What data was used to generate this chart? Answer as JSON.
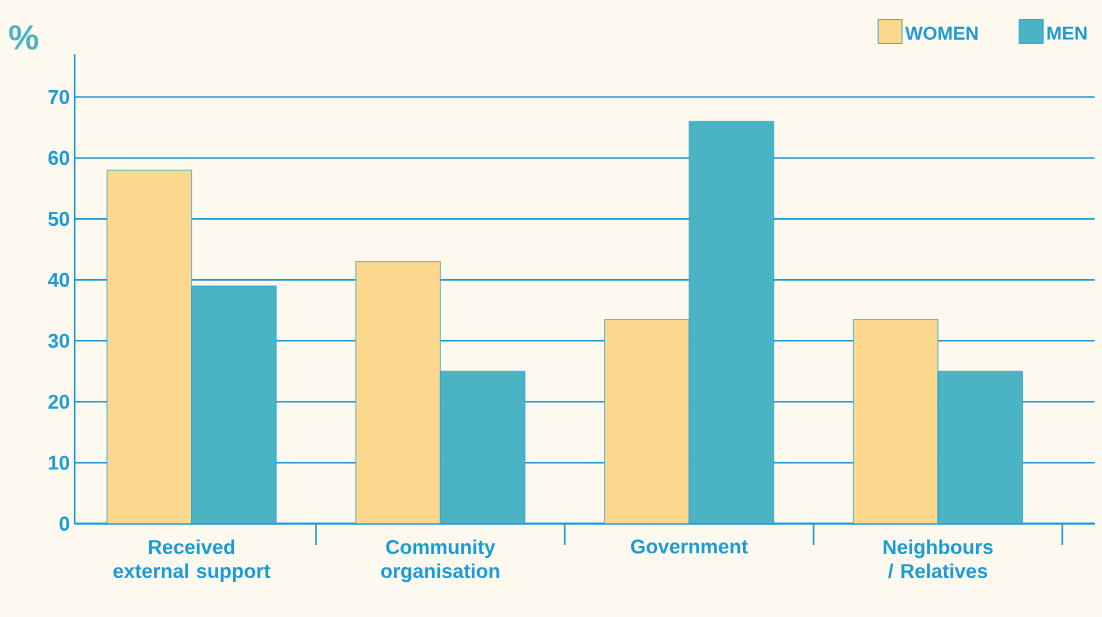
{
  "chart_data": {
    "type": "bar",
    "ylabel": "%",
    "categories": [
      "Received external support",
      "Community organisation",
      "Government",
      "Neighbours / Relatives"
    ],
    "series": [
      {
        "name": "WOMEN",
        "color": "#fbd88e",
        "values": [
          58,
          43,
          33.5,
          33.5
        ]
      },
      {
        "name": "MEN",
        "color": "#4bb4c4",
        "values": [
          39,
          25,
          66,
          25
        ]
      }
    ],
    "ylim": [
      0,
      77
    ],
    "yticks": [
      0,
      10,
      20,
      30,
      40,
      50,
      60,
      70
    ],
    "grid": "y",
    "legend": "top right"
  }
}
